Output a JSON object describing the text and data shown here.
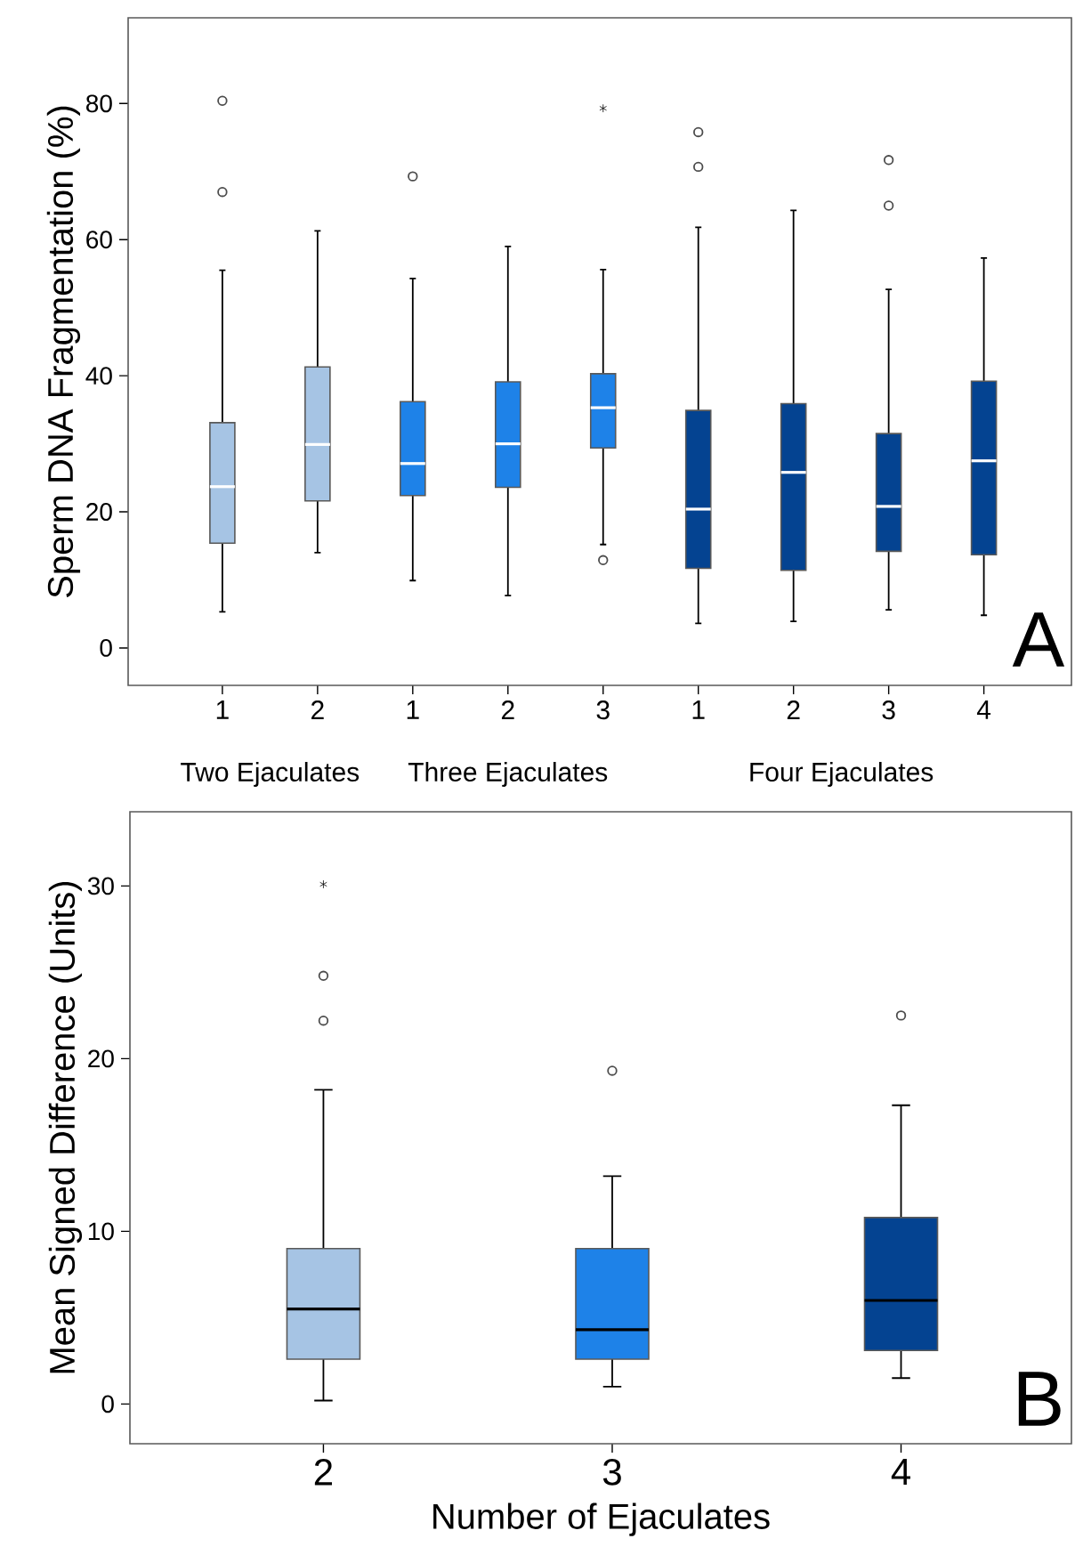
{
  "chart_data": [
    {
      "type": "box",
      "ylabel": "Sperm DNA Fragmentation (%)",
      "categories": [
        "1",
        "2",
        "1",
        "2",
        "3",
        "1",
        "2",
        "3",
        "4"
      ],
      "ylim": [
        -5.5,
        92.6
      ],
      "yticks": [
        0,
        20,
        40,
        60,
        80
      ],
      "series": [
        {
          "color": "#a6c4e4",
          "boxes": [
            {
              "low": 5.3,
              "q1": 15.4,
              "median": 23.7,
              "q3": 33.1,
              "high": 55.5,
              "outliers": [
                80.4,
                67
              ]
            },
            {
              "low": 14.0,
              "q1": 21.6,
              "median": 29.9,
              "q3": 41.3,
              "high": 61.3
            },
            null,
            null,
            null,
            null,
            null,
            null,
            null
          ]
        },
        {
          "color": "#1e82e8",
          "boxes": [
            null,
            null,
            {
              "low": 9.9,
              "q1": 22.4,
              "median": 27.1,
              "q3": 36.2,
              "high": 54.3,
              "outliers": [
                69.3
              ]
            },
            {
              "low": 7.7,
              "q1": 23.6,
              "median": 30.0,
              "q3": 39.1,
              "high": 59.0
            },
            {
              "low": 15.2,
              "q1": 29.4,
              "median": 35.3,
              "q3": 40.3,
              "high": 55.6,
              "outliers": [
                79.3,
                12.9
              ]
            },
            null,
            null,
            null,
            null
          ]
        },
        {
          "color": "#044391",
          "boxes": [
            null,
            null,
            null,
            null,
            null,
            {
              "low": 3.6,
              "q1": 11.7,
              "median": 20.4,
              "q3": 34.9,
              "high": 61.8,
              "outliers": [
                75.8,
                70.7
              ]
            },
            {
              "low": 3.9,
              "q1": 11.4,
              "median": 25.8,
              "q3": 35.9,
              "high": 64.3
            },
            {
              "low": 5.6,
              "q1": 14.2,
              "median": 20.8,
              "q3": 31.5,
              "high": 52.7,
              "outliers": [
                71.7,
                65.0
              ]
            },
            {
              "low": 4.8,
              "q1": 13.7,
              "median": 27.5,
              "q3": 39.2,
              "high": 57.3
            }
          ]
        }
      ],
      "annotations": [
        "Two Ejaculates",
        "Three Ejaculates",
        "Four Ejaculates",
        "A"
      ]
    },
    {
      "type": "box",
      "xlabel": "Number of Ejaculates",
      "ylabel": "Mean Signed Difference (Units)",
      "categories": [
        "2",
        "3",
        "4"
      ],
      "ylim": [
        -2.3,
        34.3
      ],
      "yticks": [
        0,
        10,
        20,
        30
      ],
      "colors": [
        "#a6c4e4",
        "#1e82e8",
        "#044391"
      ],
      "boxes": [
        {
          "low": 0.2,
          "q1": 2.6,
          "median": 5.5,
          "q3": 9.0,
          "high": 18.2,
          "outliers": [
            30.1,
            24.8,
            22.2
          ]
        },
        {
          "low": 1.0,
          "q1": 2.6,
          "median": 4.3,
          "q3": 9.0,
          "high": 13.2,
          "outliers": [
            19.3
          ]
        },
        {
          "low": 1.5,
          "q1": 3.1,
          "median": 6.0,
          "q3": 10.8,
          "high": 17.3,
          "outliers": [
            22.5
          ]
        }
      ],
      "annotations": [
        "B"
      ]
    }
  ]
}
